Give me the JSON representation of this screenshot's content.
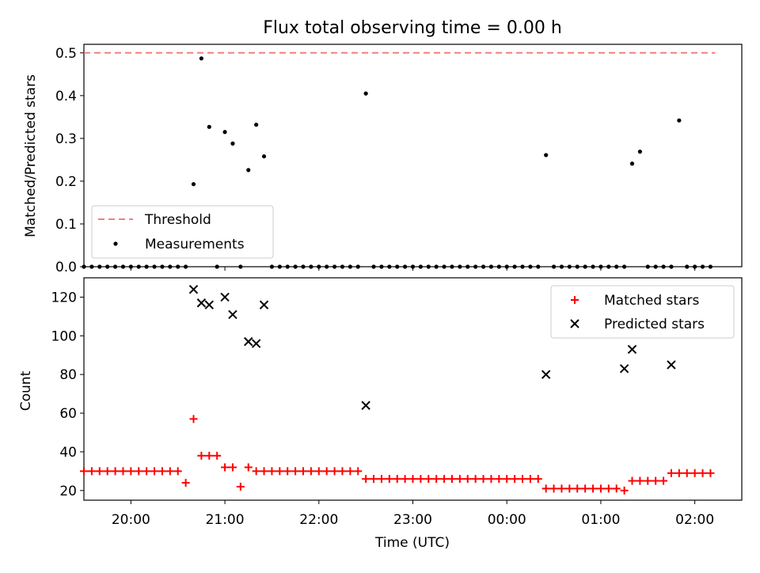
{
  "title": "Flux total observing time = 0.00 h",
  "xlabel": "Time (UTC)",
  "colors": {
    "threshold": "#f08080",
    "matched": "#ff0000",
    "predicted": "#000000",
    "measurement": "#000000"
  },
  "chart_data": [
    {
      "type": "scatter",
      "ylabel": "Matched/Predicted stars",
      "xlim": [
        "19:30",
        "02:30"
      ],
      "ylim": [
        0,
        0.52
      ],
      "yticks": [
        0.0,
        0.1,
        0.2,
        0.3,
        0.4,
        0.5
      ],
      "ytick_labels": [
        "0.0",
        "0.1",
        "0.2",
        "0.3",
        "0.4",
        "0.5"
      ],
      "legend": {
        "position": "lower-left",
        "entries": [
          "Threshold",
          "Measurements"
        ]
      },
      "threshold": {
        "name": "Threshold",
        "value": 0.5,
        "x_range": [
          "19:30",
          "02:13"
        ]
      },
      "measurements": {
        "name": "Measurements",
        "x": [
          "19:30",
          "19:35",
          "19:40",
          "19:45",
          "19:50",
          "19:55",
          "20:00",
          "20:05",
          "20:10",
          "20:15",
          "20:20",
          "20:25",
          "20:30",
          "20:35",
          "20:40",
          "20:45",
          "20:50",
          "20:55",
          "21:00",
          "21:05",
          "21:10",
          "21:15",
          "21:20",
          "21:25",
          "21:30",
          "21:35",
          "21:40",
          "21:45",
          "21:50",
          "21:55",
          "22:00",
          "22:05",
          "22:10",
          "22:15",
          "22:20",
          "22:25",
          "22:30",
          "22:35",
          "22:40",
          "22:45",
          "22:50",
          "22:55",
          "23:00",
          "23:05",
          "23:10",
          "23:15",
          "23:20",
          "23:25",
          "23:30",
          "23:35",
          "23:40",
          "23:45",
          "23:50",
          "23:55",
          "00:00",
          "00:05",
          "00:10",
          "00:15",
          "00:20",
          "00:25",
          "00:30",
          "00:35",
          "00:40",
          "00:45",
          "00:50",
          "00:55",
          "01:00",
          "01:05",
          "01:10",
          "01:15",
          "01:20",
          "01:25",
          "01:30",
          "01:35",
          "01:40",
          "01:45",
          "01:50",
          "01:55",
          "02:00",
          "02:05",
          "02:10"
        ],
        "y": [
          0,
          0,
          0,
          0,
          0,
          0,
          0,
          0,
          0,
          0,
          0,
          0,
          0,
          0,
          0.193,
          0.487,
          0.327,
          0,
          0.315,
          0.288,
          0,
          0.226,
          0.332,
          0.258,
          0,
          0,
          0,
          0,
          0,
          0,
          0,
          0,
          0,
          0,
          0,
          0,
          0.405,
          0,
          0,
          0,
          0,
          0,
          0,
          0,
          0,
          0,
          0,
          0,
          0,
          0,
          0,
          0,
          0,
          0,
          0,
          0,
          0,
          0,
          0,
          0.261,
          0,
          0,
          0,
          0,
          0,
          0,
          0,
          0,
          0,
          0,
          0.241,
          0.269,
          0,
          0,
          0,
          0,
          0.342,
          0,
          0,
          0,
          0
        ]
      }
    },
    {
      "type": "scatter",
      "ylabel": "Count",
      "xlim": [
        "19:30",
        "02:30"
      ],
      "ylim": [
        15,
        130
      ],
      "yticks": [
        20,
        40,
        60,
        80,
        100,
        120
      ],
      "ytick_labels": [
        "20",
        "40",
        "60",
        "80",
        "100",
        "120"
      ],
      "xticks": [
        "20:00",
        "21:00",
        "22:00",
        "23:00",
        "00:00",
        "01:00",
        "02:00"
      ],
      "legend": {
        "position": "top-right",
        "entries": [
          "Matched stars",
          "Predicted stars"
        ]
      },
      "series": [
        {
          "name": "Matched stars",
          "marker": "+",
          "x": [
            "19:30",
            "19:35",
            "19:40",
            "19:45",
            "19:50",
            "19:55",
            "20:00",
            "20:05",
            "20:10",
            "20:15",
            "20:20",
            "20:25",
            "20:30",
            "20:35",
            "20:40",
            "20:45",
            "20:50",
            "20:55",
            "21:00",
            "21:05",
            "21:10",
            "21:15",
            "21:20",
            "21:25",
            "21:30",
            "21:35",
            "21:40",
            "21:45",
            "21:50",
            "21:55",
            "22:00",
            "22:05",
            "22:10",
            "22:15",
            "22:20",
            "22:25",
            "22:30",
            "22:35",
            "22:40",
            "22:45",
            "22:50",
            "22:55",
            "23:00",
            "23:05",
            "23:10",
            "23:15",
            "23:20",
            "23:25",
            "23:30",
            "23:35",
            "23:40",
            "23:45",
            "23:50",
            "23:55",
            "00:00",
            "00:05",
            "00:10",
            "00:15",
            "00:20",
            "00:25",
            "00:30",
            "00:35",
            "00:40",
            "00:45",
            "00:50",
            "00:55",
            "01:00",
            "01:05",
            "01:10",
            "01:15",
            "01:20",
            "01:25",
            "01:30",
            "01:35",
            "01:40",
            "01:45",
            "01:50",
            "01:55",
            "02:00",
            "02:05",
            "02:10"
          ],
          "y": [
            30,
            30,
            30,
            30,
            30,
            30,
            30,
            30,
            30,
            30,
            30,
            30,
            30,
            24,
            57,
            38,
            38,
            38,
            32,
            32,
            22,
            32,
            30,
            30,
            30,
            30,
            30,
            30,
            30,
            30,
            30,
            30,
            30,
            30,
            30,
            30,
            26,
            26,
            26,
            26,
            26,
            26,
            26,
            26,
            26,
            26,
            26,
            26,
            26,
            26,
            26,
            26,
            26,
            26,
            26,
            26,
            26,
            26,
            26,
            21,
            21,
            21,
            21,
            21,
            21,
            21,
            21,
            21,
            21,
            20,
            25,
            25,
            25,
            25,
            25,
            29,
            29,
            29,
            29,
            29,
            29
          ]
        },
        {
          "name": "Predicted stars",
          "marker": "x",
          "x": [
            "20:40",
            "20:45",
            "20:50",
            "21:00",
            "21:05",
            "21:15",
            "21:20",
            "21:25",
            "22:30",
            "00:25",
            "01:15",
            "01:20",
            "01:45"
          ],
          "y": [
            124,
            117,
            116,
            120,
            111,
            97,
            96,
            116,
            64,
            80,
            83,
            93,
            85
          ]
        }
      ]
    }
  ]
}
